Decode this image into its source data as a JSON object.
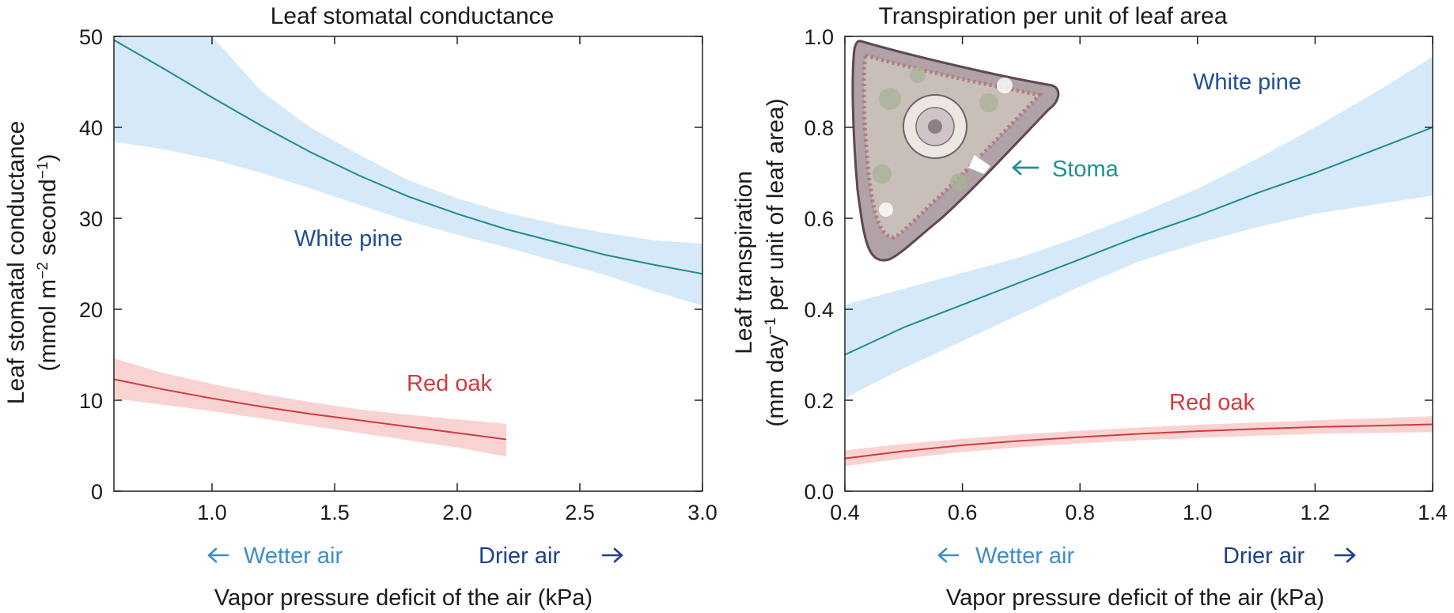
{
  "colors": {
    "pine_line": "#1f8a8f",
    "pine_band": "#d6e9f8",
    "pine_label": "#1f4e96",
    "oak_line": "#d23a3e",
    "oak_band": "#f9d3d2",
    "oak_label": "#d23a3e",
    "wetter": "#3d8ec9",
    "drier": "#1f3f8a",
    "stoma": "#1d9196"
  },
  "chart_data": [
    {
      "type": "line",
      "title": "Leaf stomatal conductance",
      "xlabel": "Vapor pressure deficit of the air (kPa)",
      "ylabel_line1": "Leaf stomatal conductance",
      "ylabel_line2_pre": "(mmol m",
      "ylabel_sup1": "−2",
      "ylabel_mid": " second",
      "ylabel_sup2": "−1",
      "ylabel_post": ")",
      "xlim": [
        0.6,
        3.0
      ],
      "ylim": [
        0,
        50
      ],
      "xticks": [
        1.0,
        1.5,
        2.0,
        2.5,
        3.0
      ],
      "xtick_labels": [
        "1.0",
        "1.5",
        "2.0",
        "2.5",
        "3.0"
      ],
      "yticks": [
        0,
        10,
        20,
        30,
        40,
        50
      ],
      "ytick_labels": [
        "0",
        "10",
        "20",
        "30",
        "40",
        "50"
      ],
      "grid": false,
      "series": [
        {
          "name": "White pine",
          "x": [
            0.6,
            0.8,
            1.0,
            1.2,
            1.4,
            1.6,
            1.8,
            2.0,
            2.2,
            2.4,
            2.6,
            2.8,
            3.0
          ],
          "y": [
            49.6,
            46.5,
            43.3,
            40.2,
            37.3,
            34.7,
            32.4,
            30.5,
            28.8,
            27.4,
            26.0,
            24.9,
            23.9
          ],
          "upper": [
            50.0,
            50.0,
            50.0,
            44.0,
            40.0,
            37.0,
            34.2,
            32.2,
            30.6,
            29.4,
            28.4,
            27.6,
            27.2
          ],
          "lower": [
            38.4,
            37.6,
            36.5,
            35.0,
            33.3,
            31.5,
            29.7,
            28.2,
            26.8,
            25.3,
            23.8,
            22.0,
            20.4
          ]
        },
        {
          "name": "Red oak",
          "x": [
            0.6,
            0.8,
            1.0,
            1.2,
            1.4,
            1.6,
            1.8,
            2.0,
            2.2
          ],
          "y": [
            12.3,
            11.2,
            10.2,
            9.3,
            8.5,
            7.8,
            7.1,
            6.4,
            5.7
          ],
          "upper": [
            14.6,
            13.0,
            11.8,
            10.7,
            9.8,
            9.0,
            8.4,
            7.9,
            7.4
          ],
          "lower": [
            10.2,
            9.5,
            8.8,
            8.0,
            7.2,
            6.4,
            5.6,
            4.8,
            3.8
          ]
        }
      ],
      "annotations": {
        "wetter": "Wetter air",
        "drier": "Drier air"
      }
    },
    {
      "type": "line",
      "title": "Transpiration per unit of leaf area",
      "xlabel": "Vapor pressure deficit of the air (kPa)",
      "ylabel_line1": "Leaf transpiration",
      "ylabel_line2_pre": "(mm day",
      "ylabel_sup1": "−1",
      "ylabel_post": " per unit of leaf area)",
      "xlim": [
        0.4,
        1.4
      ],
      "ylim": [
        0.0,
        1.0
      ],
      "xticks": [
        0.4,
        0.6,
        0.8,
        1.0,
        1.2,
        1.4
      ],
      "xtick_labels": [
        "0.4",
        "0.6",
        "0.8",
        "1.0",
        "1.2",
        "1.4"
      ],
      "yticks": [
        0.0,
        0.2,
        0.4,
        0.6,
        0.8,
        1.0
      ],
      "ytick_labels": [
        "0.0",
        "0.2",
        "0.4",
        "0.6",
        "0.8",
        "1.0"
      ],
      "grid": false,
      "series": [
        {
          "name": "White pine",
          "x": [
            0.4,
            0.5,
            0.6,
            0.7,
            0.8,
            0.9,
            1.0,
            1.1,
            1.2,
            1.3,
            1.4
          ],
          "y": [
            0.3,
            0.36,
            0.41,
            0.46,
            0.51,
            0.56,
            0.605,
            0.655,
            0.7,
            0.75,
            0.8
          ],
          "upper": [
            0.41,
            0.445,
            0.48,
            0.515,
            0.56,
            0.61,
            0.665,
            0.73,
            0.8,
            0.875,
            0.955
          ],
          "lower": [
            0.205,
            0.27,
            0.33,
            0.39,
            0.45,
            0.505,
            0.545,
            0.58,
            0.61,
            0.63,
            0.65
          ]
        },
        {
          "name": "Red oak",
          "x": [
            0.4,
            0.5,
            0.6,
            0.7,
            0.8,
            0.9,
            1.0,
            1.1,
            1.2,
            1.3,
            1.4
          ],
          "y": [
            0.072,
            0.088,
            0.101,
            0.111,
            0.119,
            0.126,
            0.132,
            0.137,
            0.141,
            0.144,
            0.147
          ],
          "upper": [
            0.09,
            0.104,
            0.115,
            0.125,
            0.133,
            0.14,
            0.146,
            0.151,
            0.156,
            0.16,
            0.165
          ],
          "lower": [
            0.055,
            0.072,
            0.086,
            0.097,
            0.105,
            0.112,
            0.117,
            0.122,
            0.126,
            0.128,
            0.13
          ]
        }
      ],
      "annotations": {
        "stoma": "Stoma",
        "wetter": "Wetter air",
        "drier": "Drier air"
      }
    }
  ]
}
